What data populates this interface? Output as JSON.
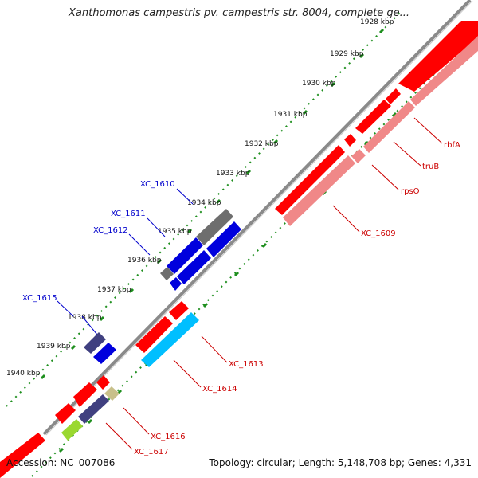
{
  "title": "Xanthomonas campestris pv. campestris str. 8004, complete ge...",
  "footer": {
    "accession": "Accession: NC_007086",
    "summary": "Topology: circular; Length: 5,148,708 bp; Genes: 4,331"
  },
  "colors": {
    "backbone": "#8a8a8a",
    "tick": "#1e8f1e",
    "tick_label": "#111111",
    "leading_label": "#0000cc",
    "lagging_label": "#cc0000"
  },
  "ticks": [
    "1928 kbp",
    "1929 kbp",
    "1930 kbp",
    "1931 kbp",
    "1932 kbp",
    "1933 kbp",
    "1934 kbp",
    "1935 kbp",
    "1936 kbp",
    "1937 kbp",
    "1938 kbp",
    "1939 kbp",
    "1940 kbp"
  ],
  "labels": {
    "XC_1610": "XC_1610",
    "XC_1611": "XC_1611",
    "XC_1612": "XC_1612",
    "XC_1615": "XC_1615",
    "rbfA": "rbfA",
    "truB": "truB",
    "rpsO": "rpsO",
    "XC_1609": "XC_1609",
    "XC_1613": "XC_1613",
    "XC_1614": "XC_1614",
    "XC_1616": "XC_1616",
    "XC_1617": "XC_1617"
  }
}
